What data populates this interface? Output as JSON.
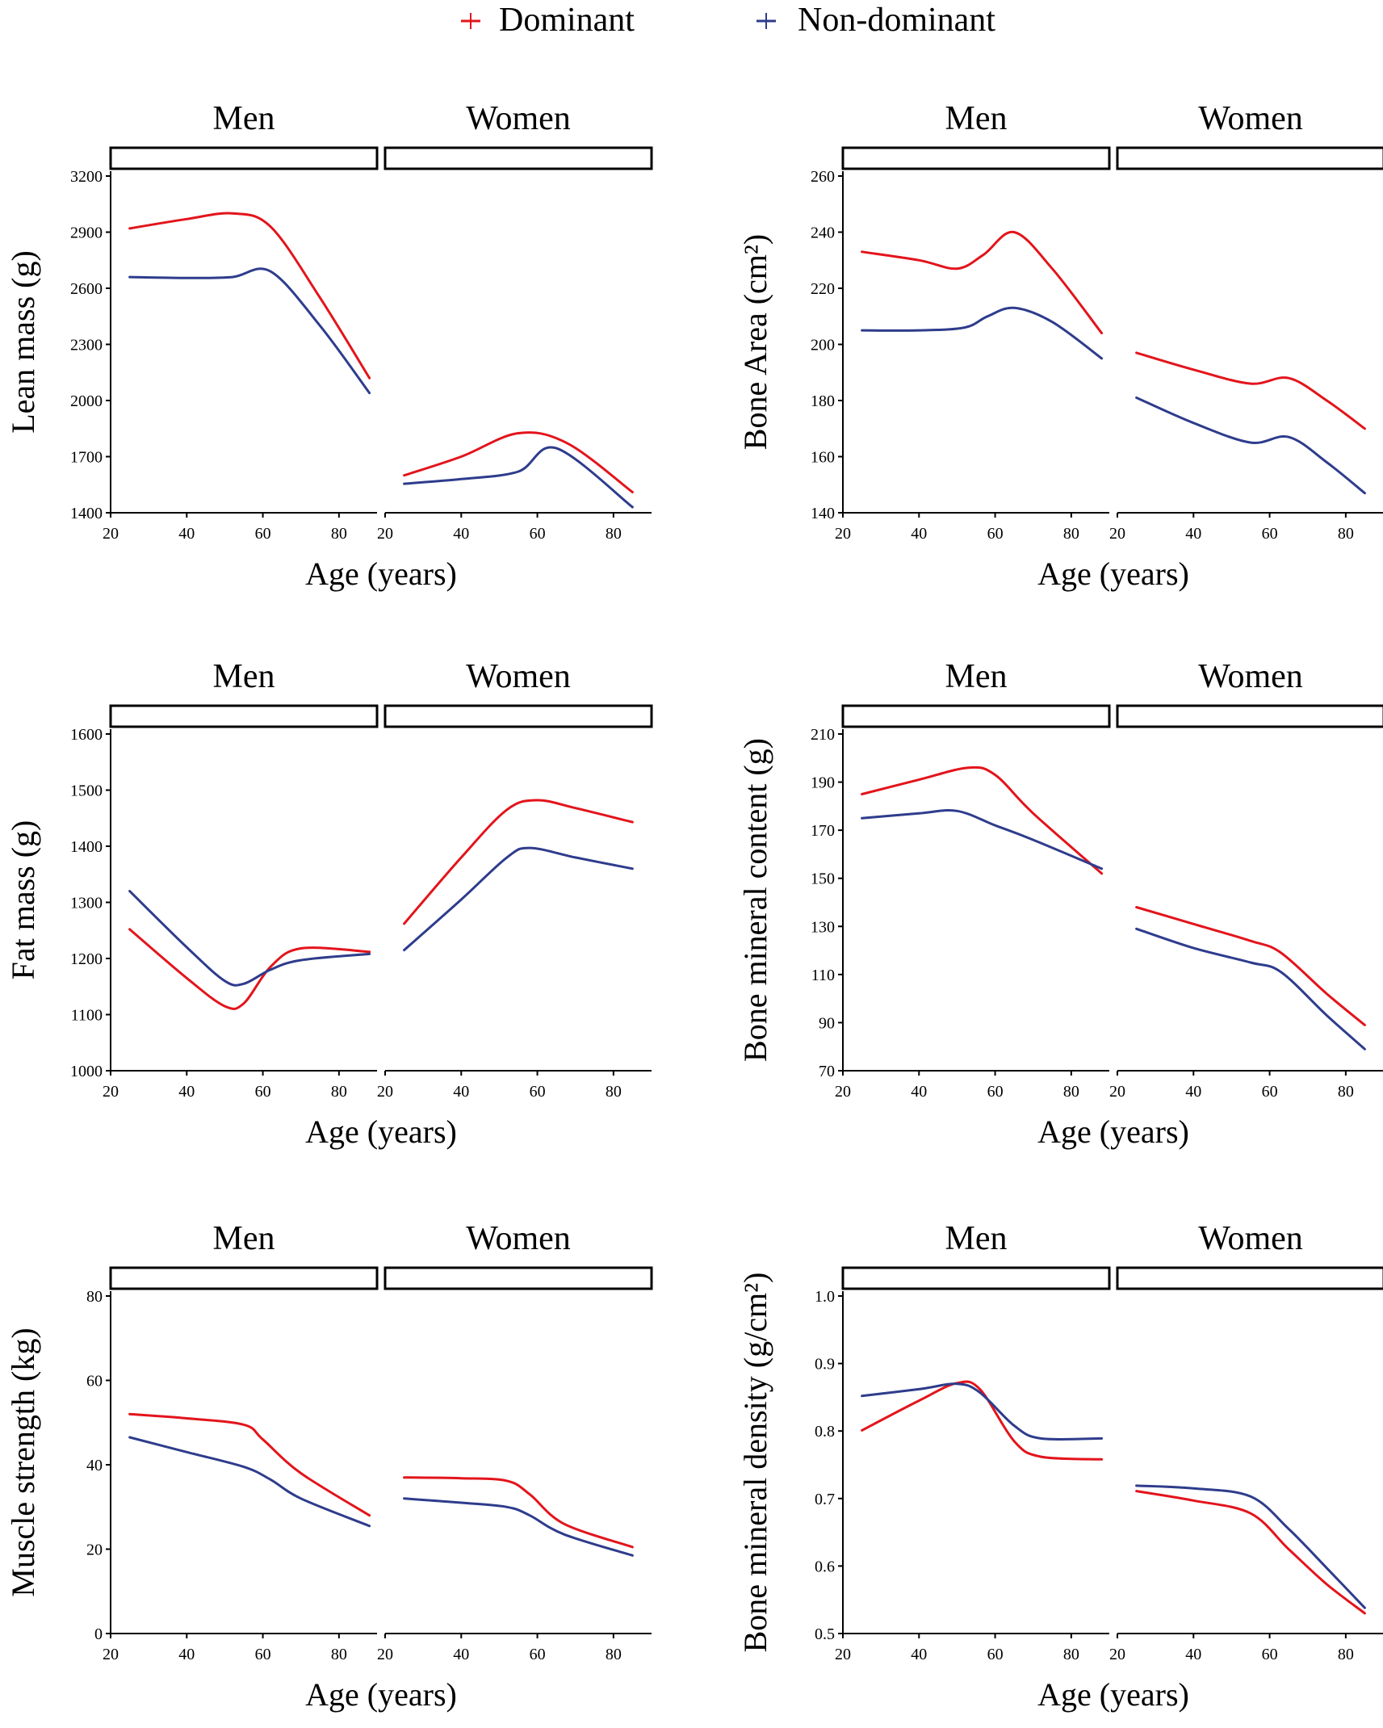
{
  "legend": {
    "items": [
      {
        "name": "Dominant",
        "color": "#e3141b"
      },
      {
        "name": "Non-dominant",
        "color": "#2e3c8c"
      }
    ]
  },
  "chart_data": [
    {
      "type": "line",
      "ylabel": "Lean mass (g)",
      "xlabel": "Age (years)",
      "ylim": [
        1400,
        3200
      ],
      "yticks": [
        1400,
        1700,
        2000,
        2300,
        2600,
        2900,
        3200
      ],
      "xlim": [
        20,
        90
      ],
      "xticks": [
        20,
        40,
        60,
        80
      ],
      "facets": [
        {
          "label": "Men",
          "series": [
            {
              "name": "Dominant",
              "x": [
                25,
                40,
                52,
                62,
                75,
                88
              ],
              "y": [
                2920,
                2970,
                3000,
                2930,
                2550,
                2120
              ]
            },
            {
              "name": "Non-dominant",
              "x": [
                25,
                40,
                52,
                62,
                75,
                88
              ],
              "y": [
                2660,
                2655,
                2660,
                2690,
                2400,
                2040
              ]
            }
          ]
        },
        {
          "label": "Women",
          "series": [
            {
              "name": "Dominant",
              "x": [
                25,
                40,
                55,
                68,
                85
              ],
              "y": [
                1600,
                1700,
                1825,
                1770,
                1510
              ]
            },
            {
              "name": "Non-dominant",
              "x": [
                25,
                40,
                55,
                65,
                85
              ],
              "y": [
                1555,
                1580,
                1620,
                1745,
                1430
              ]
            }
          ]
        }
      ]
    },
    {
      "type": "line",
      "ylabel": "Bone Area (cm²)",
      "xlabel": "Age (years)",
      "ylim": [
        140,
        260
      ],
      "yticks": [
        140,
        160,
        180,
        200,
        220,
        240,
        260
      ],
      "xlim": [
        20,
        90
      ],
      "xticks": [
        20,
        40,
        60,
        80
      ],
      "facets": [
        {
          "label": "Men",
          "series": [
            {
              "name": "Dominant",
              "x": [
                25,
                40,
                50,
                57,
                65,
                75,
                88
              ],
              "y": [
                233,
                230,
                227,
                232,
                240,
                227,
                204
              ]
            },
            {
              "name": "Non-dominant",
              "x": [
                25,
                40,
                52,
                58,
                65,
                75,
                88
              ],
              "y": [
                205,
                205,
                206,
                210,
                213,
                208,
                195
              ]
            }
          ]
        },
        {
          "label": "Women",
          "series": [
            {
              "name": "Dominant",
              "x": [
                25,
                40,
                55,
                65,
                75,
                85
              ],
              "y": [
                197,
                191,
                186,
                188,
                180,
                170
              ]
            },
            {
              "name": "Non-dominant",
              "x": [
                25,
                40,
                55,
                65,
                75,
                85
              ],
              "y": [
                181,
                172,
                165,
                167,
                158,
                147
              ]
            }
          ]
        }
      ]
    },
    {
      "type": "line",
      "ylabel": "Fat mass (g)",
      "xlabel": "Age (years)",
      "ylim": [
        1000,
        1600
      ],
      "yticks": [
        1000,
        1100,
        1200,
        1300,
        1400,
        1500,
        1600
      ],
      "xlim": [
        20,
        90
      ],
      "xticks": [
        20,
        40,
        60,
        80
      ],
      "facets": [
        {
          "label": "Men",
          "series": [
            {
              "name": "Dominant",
              "x": [
                25,
                40,
                50,
                55,
                62,
                70,
                88
              ],
              "y": [
                1252,
                1165,
                1115,
                1120,
                1185,
                1218,
                1212
              ]
            },
            {
              "name": "Non-dominant",
              "x": [
                25,
                40,
                50,
                55,
                62,
                70,
                88
              ],
              "y": [
                1320,
                1220,
                1160,
                1155,
                1180,
                1197,
                1208
              ]
            }
          ]
        },
        {
          "label": "Women",
          "series": [
            {
              "name": "Dominant",
              "x": [
                25,
                40,
                52,
                60,
                70,
                85
              ],
              "y": [
                1262,
                1380,
                1465,
                1482,
                1468,
                1443
              ]
            },
            {
              "name": "Non-dominant",
              "x": [
                25,
                40,
                52,
                58,
                70,
                85
              ],
              "y": [
                1215,
                1305,
                1380,
                1397,
                1380,
                1360
              ]
            }
          ]
        }
      ]
    },
    {
      "type": "line",
      "ylabel": "Bone mineral content (g)",
      "xlabel": "Age (years)",
      "ylim": [
        70,
        210
      ],
      "yticks": [
        70,
        90,
        110,
        130,
        150,
        170,
        190,
        210
      ],
      "xlim": [
        20,
        90
      ],
      "xticks": [
        20,
        40,
        60,
        80
      ],
      "facets": [
        {
          "label": "Men",
          "series": [
            {
              "name": "Dominant",
              "x": [
                25,
                40,
                53,
                60,
                70,
                88
              ],
              "y": [
                185,
                191,
                196,
                193,
                177,
                152
              ]
            },
            {
              "name": "Non-dominant",
              "x": [
                25,
                40,
                50,
                60,
                70,
                88
              ],
              "y": [
                175,
                177,
                178,
                172,
                166,
                154
              ]
            }
          ]
        },
        {
          "label": "Women",
          "series": [
            {
              "name": "Dominant",
              "x": [
                25,
                40,
                55,
                63,
                75,
                85
              ],
              "y": [
                138,
                131,
                124,
                119,
                102,
                89
              ]
            },
            {
              "name": "Non-dominant",
              "x": [
                25,
                40,
                55,
                63,
                75,
                85
              ],
              "y": [
                129,
                121,
                115,
                111,
                93,
                79
              ]
            }
          ]
        }
      ]
    },
    {
      "type": "line",
      "ylabel": "Muscle strength (kg)",
      "xlabel": "Age (years)",
      "ylim": [
        0,
        80
      ],
      "yticks": [
        0,
        20,
        40,
        60,
        80
      ],
      "xlim": [
        20,
        90
      ],
      "xticks": [
        20,
        40,
        60,
        80
      ],
      "facets": [
        {
          "label": "Men",
          "series": [
            {
              "name": "Dominant",
              "x": [
                25,
                40,
                55,
                60,
                70,
                88
              ],
              "y": [
                52,
                51,
                49.5,
                46,
                38,
                28
              ]
            },
            {
              "name": "Non-dominant",
              "x": [
                25,
                40,
                55,
                62,
                70,
                88
              ],
              "y": [
                46.5,
                43,
                39.5,
                36.5,
                32,
                25.5
              ]
            }
          ]
        },
        {
          "label": "Women",
          "series": [
            {
              "name": "Dominant",
              "x": [
                25,
                40,
                52,
                58,
                67,
                85
              ],
              "y": [
                37,
                36.8,
                36.2,
                33,
                26,
                20.5
              ]
            },
            {
              "name": "Non-dominant",
              "x": [
                25,
                40,
                52,
                58,
                67,
                85
              ],
              "y": [
                32,
                31,
                30,
                28,
                23.5,
                18.5
              ]
            }
          ]
        }
      ]
    },
    {
      "type": "line",
      "ylabel": "Bone mineral density (g/cm²)",
      "xlabel": "Age (years)",
      "ylim": [
        0.5,
        1.0
      ],
      "yticks": [
        0.5,
        0.6,
        0.7,
        0.8,
        0.9,
        1.0
      ],
      "ytick_labels": [
        "0.5",
        "0.6",
        "0.7",
        "0.8",
        "0.9",
        "1.0"
      ],
      "xlim": [
        20,
        90
      ],
      "xticks": [
        20,
        40,
        60,
        80
      ],
      "facets": [
        {
          "label": "Men",
          "series": [
            {
              "name": "Dominant",
              "x": [
                25,
                40,
                50,
                56,
                65,
                72,
                88
              ],
              "y": [
                0.801,
                0.845,
                0.871,
                0.862,
                0.785,
                0.762,
                0.758
              ]
            },
            {
              "name": "Non-dominant",
              "x": [
                25,
                40,
                50,
                56,
                65,
                72,
                88
              ],
              "y": [
                0.852,
                0.862,
                0.87,
                0.857,
                0.808,
                0.789,
                0.789
              ]
            }
          ]
        },
        {
          "label": "Women",
          "series": [
            {
              "name": "Dominant",
              "x": [
                25,
                40,
                55,
                65,
                75,
                85
              ],
              "y": [
                0.711,
                0.697,
                0.678,
                0.625,
                0.573,
                0.53
              ]
            },
            {
              "name": "Non-dominant",
              "x": [
                25,
                40,
                55,
                65,
                75,
                85
              ],
              "y": [
                0.719,
                0.715,
                0.703,
                0.655,
                0.597,
                0.538
              ]
            }
          ]
        }
      ]
    }
  ]
}
